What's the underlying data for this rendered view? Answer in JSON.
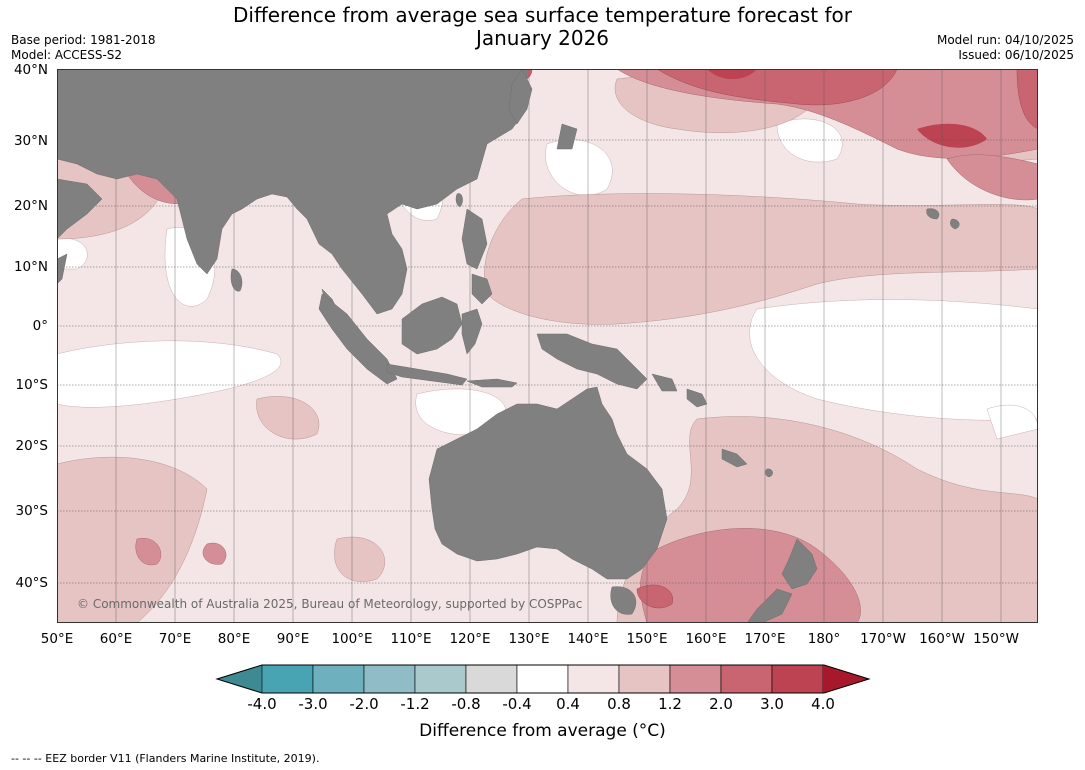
{
  "title_line1": "Difference from average sea surface temperature forecast for",
  "title_line2": "January 2026",
  "meta_left": {
    "base_period": "Base period: 1981-2018",
    "model": "Model: ACCESS-S2"
  },
  "meta_right": {
    "model_run": "Model run: 04/10/2025",
    "issued": "Issued: 06/10/2025"
  },
  "lat_labels": [
    "40°N",
    "30°N",
    "20°N",
    "10°N",
    "0°",
    "10°S",
    "20°S",
    "30°S",
    "40°S"
  ],
  "lon_labels": [
    "50°E",
    "60°E",
    "70°E",
    "80°E",
    "90°E",
    "100°E",
    "110°E",
    "120°E",
    "130°E",
    "140°E",
    "150°E",
    "160°E",
    "170°E",
    "180°",
    "170°W",
    "160°W",
    "150°W"
  ],
  "copyright": "© Commonwealth of Australia 2025, Bureau of Meteorology, supported by COSPPac",
  "colorbar": {
    "label": "Difference from average (°C)",
    "ticks": [
      "-4.0",
      "-3.0",
      "-2.0",
      "-1.2",
      "-0.8",
      "-0.4",
      "0.4",
      "0.8",
      "1.2",
      "2.0",
      "3.0",
      "4.0"
    ],
    "colors": [
      "#3d8a92",
      "#48a3b3",
      "#6eb0bd",
      "#8fbcc6",
      "#a9c9cd",
      "#d9d9d9",
      "#ffffff",
      "#f4e6e6",
      "#e7c4c4",
      "#d68e96",
      "#c96570",
      "#bd4352",
      "#a8182d"
    ]
  },
  "land_color": "#808080",
  "footer": "-- -- -- EEZ border V11 (Flanders Marine Institute, 2019)."
}
